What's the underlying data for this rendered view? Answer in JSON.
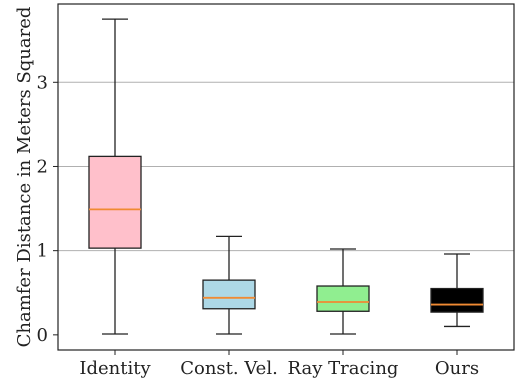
{
  "chart_data": {
    "type": "box",
    "title": "",
    "xlabel": "",
    "ylabel": "Chamfer Distance in Meters Squared",
    "ylim": [
      -0.18,
      3.93
    ],
    "yticks": [
      0,
      1,
      2,
      3
    ],
    "grid": "horizontal",
    "categories": [
      "Identity",
      "Const. Vel.",
      "Ray Tracing",
      "Ours"
    ],
    "boxes": [
      {
        "category": "Identity",
        "min": 0.01,
        "q1": 1.03,
        "median": 1.49,
        "q3": 2.12,
        "max": 3.75,
        "color": "#ffc0cb"
      },
      {
        "category": "Const. Vel.",
        "min": 0.01,
        "q1": 0.31,
        "median": 0.44,
        "q3": 0.65,
        "max": 1.17,
        "color": "#add8e6"
      },
      {
        "category": "Ray Tracing",
        "min": 0.01,
        "q1": 0.28,
        "median": 0.39,
        "q3": 0.58,
        "max": 1.02,
        "color": "#90ee90"
      },
      {
        "category": "Ours",
        "min": 0.1,
        "q1": 0.27,
        "median": 0.36,
        "q3": 0.55,
        "max": 0.96,
        "color": "#000000"
      }
    ],
    "median_color": "#f08a33"
  }
}
